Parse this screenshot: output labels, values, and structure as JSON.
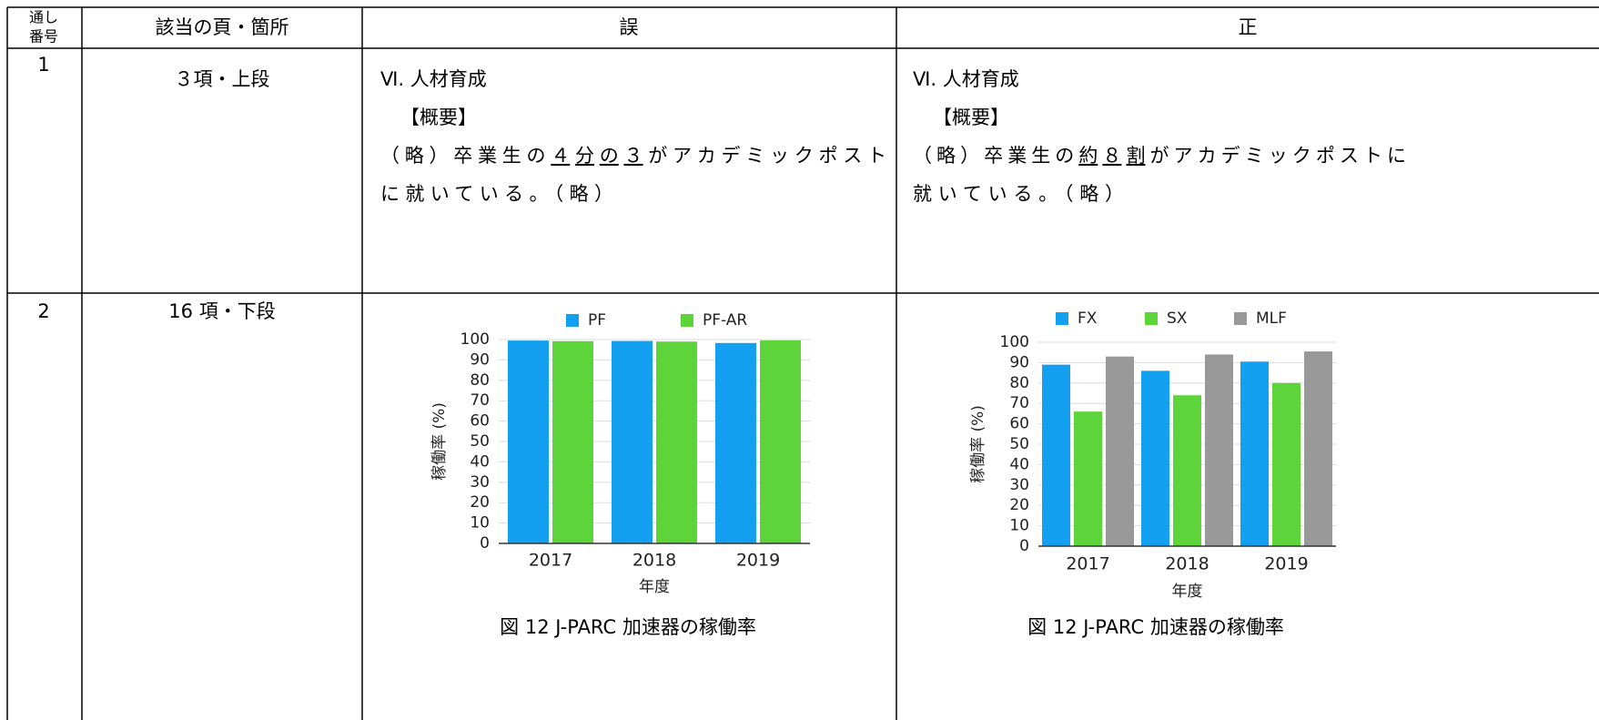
{
  "table": {
    "header": {
      "number": [
        "通し",
        "番号"
      ],
      "location": "該当の頁・箇所",
      "wrong": "誤",
      "correct": "正"
    },
    "rows": [
      {
        "number": "1",
        "location": "３項・上段",
        "wrong": {
          "heading": "Ⅵ. 人材育成",
          "subheading": "【概要】",
          "lines": [
            [
              "（略）卒業生の",
              "４分の３",
              "がアカデミックポスト"
            ],
            [
              "に就いている。（略）"
            ]
          ]
        },
        "correct": {
          "heading": "Ⅵ. 人材育成",
          "subheading": "【概要】",
          "lines": [
            [
              "（略）卒業生の",
              "約８割",
              "がアカデミックポストに"
            ],
            [
              "就いている。（略）"
            ]
          ]
        }
      },
      {
        "number": "2",
        "location": "16 項・下段"
      }
    ]
  },
  "chart_data": [
    {
      "type": "bar",
      "categories": [
        "2017",
        "2018",
        "2019"
      ],
      "series": [
        {
          "name": "PF",
          "color": "#14a0f0",
          "values": [
            99.5,
            99.3,
            98.3
          ]
        },
        {
          "name": "PF-AR",
          "color": "#5cd43a",
          "values": [
            99.2,
            99.0,
            99.6
          ]
        }
      ],
      "ylim": [
        0,
        100
      ],
      "yticks": [
        0,
        10,
        20,
        30,
        40,
        50,
        60,
        70,
        80,
        90,
        100
      ],
      "y_label": "稼働率 (%)",
      "x_label": "年度",
      "grid": true,
      "caption": "図 12 J-PARC 加速器の稼働率"
    },
    {
      "type": "bar",
      "categories": [
        "2017",
        "2018",
        "2019"
      ],
      "series": [
        {
          "name": "FX",
          "color": "#14a0f0",
          "values": [
            89,
            86,
            90.5
          ]
        },
        {
          "name": "SX",
          "color": "#5cd43a",
          "values": [
            66,
            74,
            80
          ]
        },
        {
          "name": "MLF",
          "color": "#999999",
          "values": [
            93,
            94,
            95.5
          ]
        }
      ],
      "ylim": [
        0,
        100
      ],
      "yticks": [
        0,
        10,
        20,
        30,
        40,
        50,
        60,
        70,
        80,
        90,
        100
      ],
      "y_label": "稼働率 (%)",
      "x_label": "年度",
      "grid": true,
      "caption": "図 12 J-PARC 加速器の稼働率"
    }
  ]
}
